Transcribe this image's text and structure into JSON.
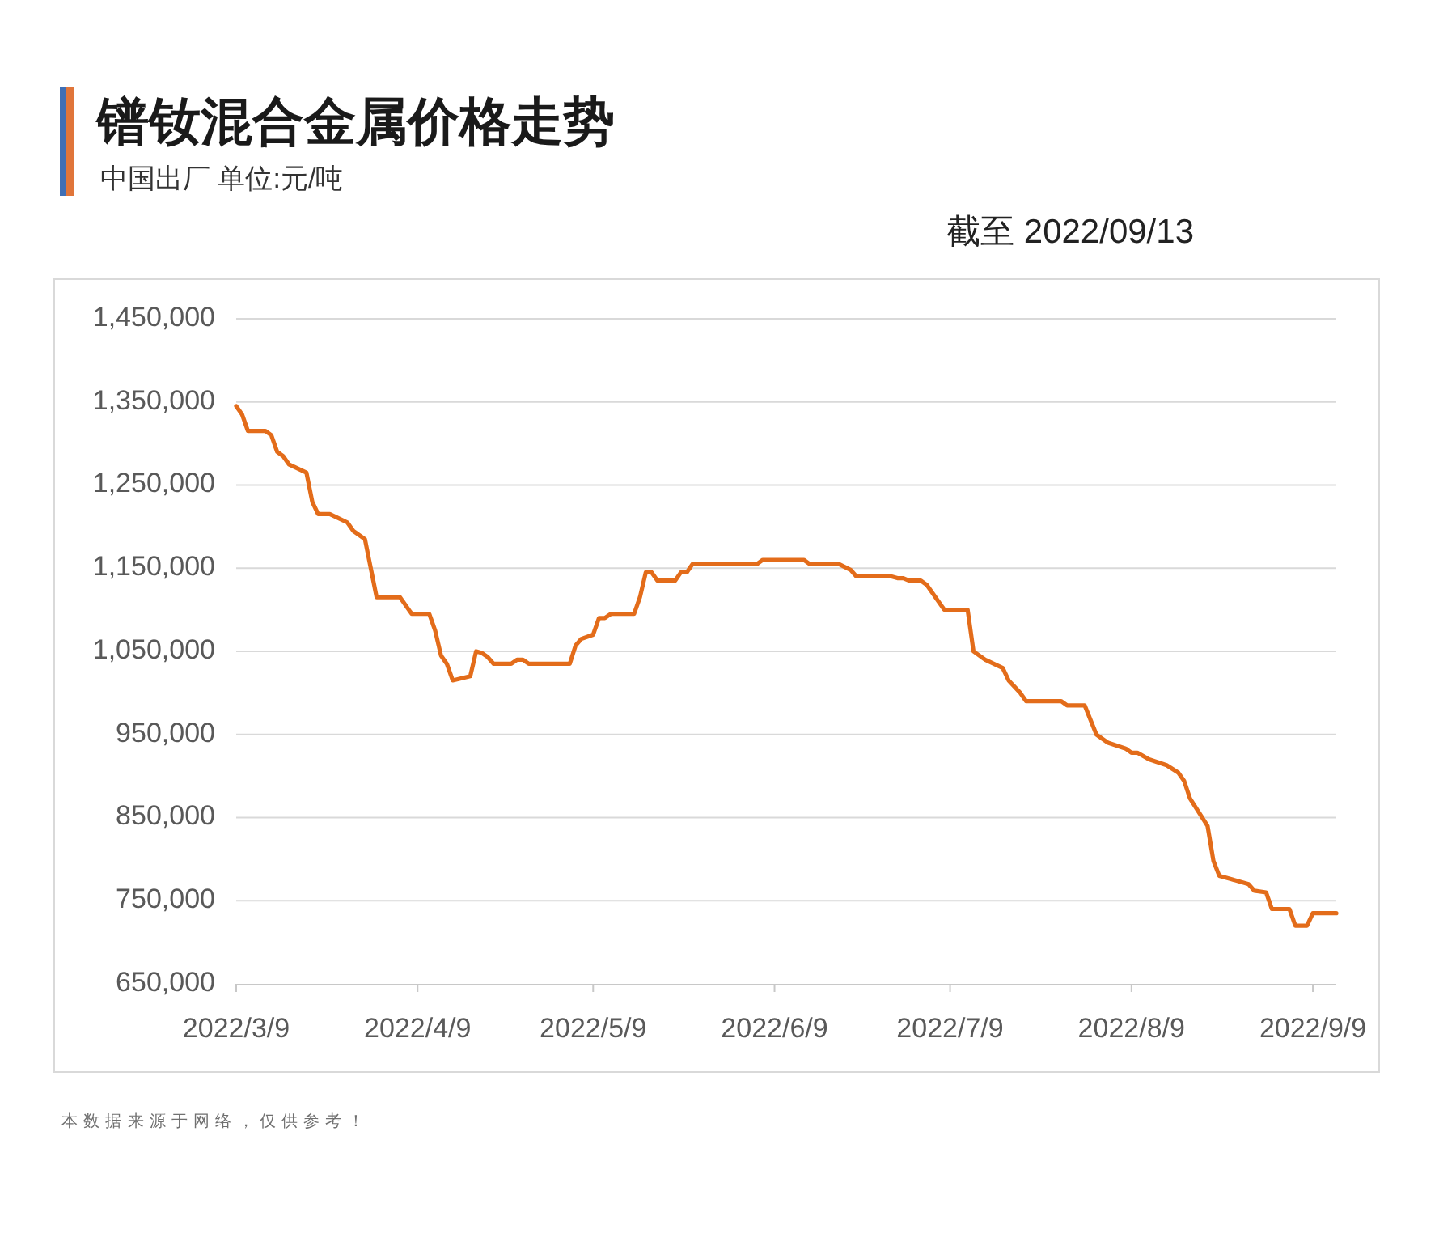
{
  "chart_data": {
    "type": "line",
    "title": "镨钕混合金属价格走势",
    "subtitle": "中国出厂 单位:元/吨",
    "annotations": [
      "截至 2022/09/13",
      "本数据来源于网络，仅供参考！"
    ],
    "x": [
      "2022-03-09",
      "2022-03-10",
      "2022-03-11",
      "2022-03-14",
      "2022-03-15",
      "2022-03-16",
      "2022-03-17",
      "2022-03-18",
      "2022-03-21",
      "2022-03-22",
      "2022-03-23",
      "2022-03-25",
      "2022-03-28",
      "2022-03-29",
      "2022-03-31",
      "2022-04-02",
      "2022-04-06",
      "2022-04-08",
      "2022-04-11",
      "2022-04-12",
      "2022-04-13",
      "2022-04-14",
      "2022-04-15",
      "2022-04-18",
      "2022-04-19",
      "2022-04-20",
      "2022-04-21",
      "2022-04-22",
      "2022-04-25",
      "2022-04-26",
      "2022-04-27",
      "2022-04-28",
      "2022-05-05",
      "2022-05-06",
      "2022-05-07",
      "2022-05-09",
      "2022-05-10",
      "2022-05-11",
      "2022-05-12",
      "2022-05-16",
      "2022-05-17",
      "2022-05-18",
      "2022-05-19",
      "2022-05-20",
      "2022-05-23",
      "2022-05-24",
      "2022-05-25",
      "2022-05-26",
      "2022-06-06",
      "2022-06-07",
      "2022-06-14",
      "2022-06-15",
      "2022-06-20",
      "2022-06-22",
      "2022-06-23",
      "2022-06-29",
      "2022-06-30",
      "2022-07-01",
      "2022-07-02",
      "2022-07-04",
      "2022-07-05",
      "2022-07-07",
      "2022-07-08",
      "2022-07-12",
      "2022-07-13",
      "2022-07-15",
      "2022-07-18",
      "2022-07-19",
      "2022-07-21",
      "2022-07-22",
      "2022-07-28",
      "2022-07-29",
      "2022-08-01",
      "2022-08-03",
      "2022-08-05",
      "2022-08-08",
      "2022-08-09",
      "2022-08-10",
      "2022-08-12",
      "2022-08-15",
      "2022-08-17",
      "2022-08-18",
      "2022-08-19",
      "2022-08-22",
      "2022-08-23",
      "2022-08-24",
      "2022-08-26",
      "2022-08-29",
      "2022-08-30",
      "2022-09-01",
      "2022-09-02",
      "2022-09-05",
      "2022-09-06",
      "2022-09-08",
      "2022-09-09",
      "2022-09-13"
    ],
    "series": [
      {
        "color": "#e36c1a",
        "values": [
          1345000,
          1335000,
          1315000,
          1315000,
          1310000,
          1290000,
          1285000,
          1275000,
          1265000,
          1230000,
          1215000,
          1215000,
          1205000,
          1195000,
          1185000,
          1115000,
          1115000,
          1095000,
          1095000,
          1075000,
          1045000,
          1035000,
          1015000,
          1020000,
          1050000,
          1048000,
          1043000,
          1035000,
          1035000,
          1040000,
          1040000,
          1035000,
          1035000,
          1057000,
          1065000,
          1070000,
          1090000,
          1090000,
          1095000,
          1095000,
          1115000,
          1145000,
          1145000,
          1135000,
          1135000,
          1145000,
          1145000,
          1155000,
          1155000,
          1160000,
          1160000,
          1155000,
          1155000,
          1148000,
          1140000,
          1140000,
          1138000,
          1138000,
          1135000,
          1135000,
          1130000,
          1110000,
          1100000,
          1100000,
          1050000,
          1040000,
          1030000,
          1015000,
          1000000,
          990000,
          990000,
          985000,
          985000,
          950000,
          940000,
          933000,
          928000,
          928000,
          920000,
          913000,
          904000,
          894000,
          873000,
          840000,
          798000,
          780000,
          776000,
          770000,
          762000,
          760000,
          740000,
          740000,
          720000,
          720000,
          735000,
          735000
        ]
      }
    ],
    "xlim": [
      "2022-03-09",
      "2022-09-13"
    ],
    "xticks": [
      {
        "value": "2022-03-09",
        "label": "2022/3/9"
      },
      {
        "value": "2022-04-09",
        "label": "2022/4/9"
      },
      {
        "value": "2022-05-09",
        "label": "2022/5/9"
      },
      {
        "value": "2022-06-09",
        "label": "2022/6/9"
      },
      {
        "value": "2022-07-09",
        "label": "2022/7/9"
      },
      {
        "value": "2022-08-09",
        "label": "2022/8/9"
      },
      {
        "value": "2022-09-09",
        "label": "2022/9/9"
      }
    ],
    "ylim": [
      650000,
      1450000
    ],
    "yticks": [
      {
        "value": 650000,
        "label": "650,000"
      },
      {
        "value": 750000,
        "label": "750,000"
      },
      {
        "value": 850000,
        "label": "850,000"
      },
      {
        "value": 950000,
        "label": "950,000"
      },
      {
        "value": 1050000,
        "label": "1,050,000"
      },
      {
        "value": 1150000,
        "label": "1,150,000"
      },
      {
        "value": 1250000,
        "label": "1,250,000"
      },
      {
        "value": 1350000,
        "label": "1,350,000"
      },
      {
        "value": 1450000,
        "label": "1,450,000"
      }
    ],
    "grid": "y",
    "marker": "none",
    "line_style": "solid"
  }
}
